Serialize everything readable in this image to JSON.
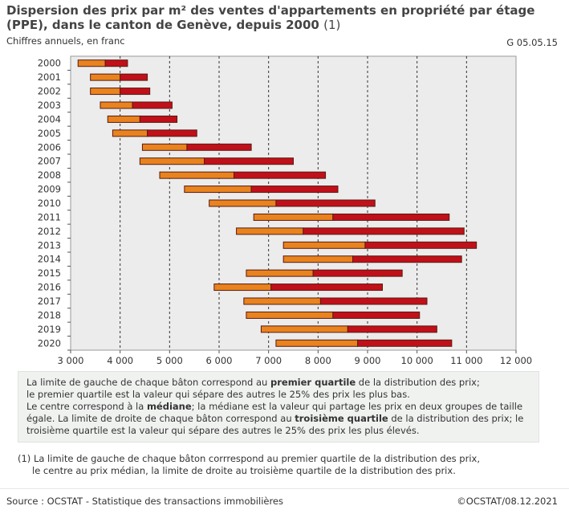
{
  "header": {
    "title": "Dispersion des prix par m² des ventes d'appartements en propriété par étage (PPE), dans le canton de Genève, depuis 2000",
    "title_note": "(1)",
    "subtitle": "Chiffres annuels, en franc",
    "code": "G 05.05.15"
  },
  "chart_data": {
    "type": "bar",
    "orientation": "horizontal",
    "style": "floating-range (quartile boxes)",
    "categories": [
      "2000",
      "2001",
      "2002",
      "2003",
      "2004",
      "2005",
      "2006",
      "2007",
      "2008",
      "2009",
      "2010",
      "2011",
      "2012",
      "2013",
      "2014",
      "2015",
      "2016",
      "2017",
      "2018",
      "2019",
      "2020"
    ],
    "series": [
      {
        "values": [
          3150,
          3400,
          3400,
          3600,
          3750,
          3850,
          4450,
          4400,
          4800,
          5300,
          5800,
          6700,
          6350,
          7300,
          7300,
          6550,
          5900,
          6500,
          6550,
          6850,
          7150
        ]
      },
      {
        "values": [
          3700,
          4000,
          4000,
          4250,
          4400,
          4550,
          5350,
          5700,
          6300,
          6650,
          7150,
          8300,
          7700,
          8950,
          8700,
          7900,
          7050,
          8050,
          8300,
          8600,
          8800
        ]
      },
      {
        "values": [
          4150,
          4550,
          4600,
          5050,
          5150,
          5550,
          6650,
          7500,
          8150,
          8400,
          9150,
          10650,
          10950,
          11200,
          10900,
          9700,
          9300,
          10200,
          10050,
          10400,
          10700
        ]
      }
    ],
    "colors": {
      "first_half": "#e8831f",
      "second_half": "#c0101a",
      "outline": "#5a1a10",
      "plot_bg": "#ececec"
    },
    "xlim": [
      3000,
      12000
    ],
    "xticks": [
      3000,
      4000,
      5000,
      6000,
      7000,
      8000,
      9000,
      10000,
      11000,
      12000
    ],
    "xtick_labels": [
      "3 000",
      "4 000",
      "5 000",
      "6 000",
      "7 000",
      "8 000",
      "9 000",
      "10 000",
      "11 000",
      "12 000"
    ],
    "grid": "vertical dashed",
    "legend": "none"
  },
  "explanation": {
    "p1_a": "La limite de gauche de chaque bâton correspond au ",
    "p1_b": "premier quartile",
    "p1_c": " de la distribution des prix;",
    "p1_d": "le premier quartile est la valeur qui sépare des autres le 25% des prix les plus bas.",
    "p2_a": "Le centre correspond à la ",
    "p2_b": "médiane",
    "p2_c": "; la médiane est la valeur qui partage les prix en deux groupes de taille égale. La limite de droite de chaque bâton correspond au ",
    "p2_d": "troisième quartile",
    "p2_e": " de la distribution des prix; le troisième quartile est la valeur qui sépare des autres le 25% des prix les plus élevés."
  },
  "footnote": {
    "line1": "(1) La limite de gauche de chaque bâton corrrespond au premier quartile de la distribution des prix,",
    "line2": "le centre au prix médian, la limite de droite au troisième quartile de la distribution des prix."
  },
  "footer": {
    "source": "Source : OCSTAT - Statistique des transactions immobilières",
    "copyright": "©OCSTAT/08.12.2021"
  }
}
